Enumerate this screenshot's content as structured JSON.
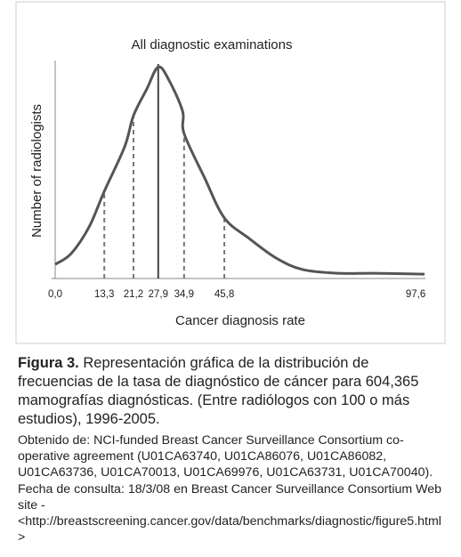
{
  "chart_data": {
    "type": "line",
    "title": "All diagnostic examinations",
    "x_label": "Cancer diagnosis rate",
    "y_label": "Number of radiologists",
    "x": [
      0,
      4.3,
      9.2,
      13.3,
      18.8,
      21.2,
      24.8,
      27.9,
      30.8,
      34.5,
      34.9,
      40.5,
      45.8,
      52.5,
      59.8,
      67,
      76.6,
      86.3,
      100
    ],
    "series": [
      {
        "name": "All diagnostic examinations",
        "color": "#555555",
        "values": [
          6.5,
          11.4,
          23.7,
          40,
          60.4,
          74.7,
          86.9,
          97,
          91,
          76.7,
          66.5,
          46,
          27.8,
          18.4,
          9.4,
          4.1,
          2.4,
          2.4,
          2
        ]
      }
    ],
    "xlim": [
      0,
      100
    ],
    "ylim": [
      0,
      100
    ],
    "xticks": [
      {
        "value": 0,
        "label": "0,0"
      },
      {
        "value": 13.3,
        "label": "13,3"
      },
      {
        "value": 21.2,
        "label": "21,2"
      },
      {
        "value": 27.9,
        "label": "27,9"
      },
      {
        "value": 34.9,
        "label": "34,9"
      },
      {
        "value": 45.8,
        "label": "45,8"
      },
      {
        "value": 97.6,
        "label": "97,6"
      }
    ],
    "median_tick": 3
  },
  "caption": {
    "label": "Figura 3.",
    "text": "Representación gráfica de la distribución de frecuencias de la tasa de diagnóstico de cáncer para 604,365 mamografías diagnósticas. (Entre radiólogos con 100 o más estudios), 1996-2005.",
    "source": "Obtenido de: NCI-funded Breast Cancer Surveillance Consortium co-operative agreement (U01CA63740, U01CA86076, U01CA86082, U01CA63736, U01CA70013, U01CA69976, U01CA63731, U01CA70040). Fecha de consulta: 18/3/08 en Breast Cancer Surveillance Consortium Web site - <http://breastscreening.cancer.gov/data/benchmarks/diagnostic/figure5.html>"
  }
}
